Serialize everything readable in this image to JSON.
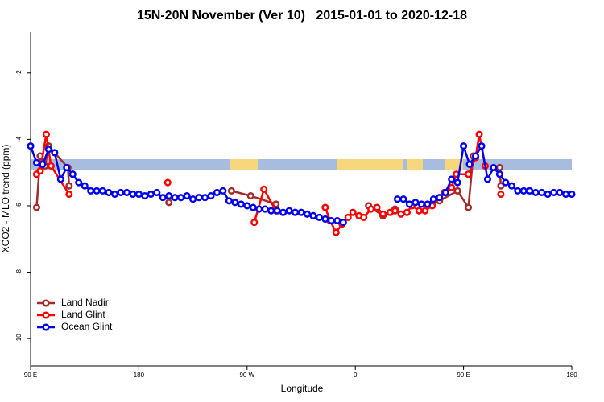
{
  "chart_data": {
    "type": "line",
    "title": "15N-20N November (Ver 10)   2015-01-01 to 2020-12-18",
    "x_label": "Longitude",
    "y_label": "XCO2 - MLO trend (ppm)",
    "xlim": [
      90,
      540
    ],
    "ylim": [
      -10.82,
      -0.77
    ],
    "xticks": [
      {
        "value": 90,
        "label": "90 E"
      },
      180,
      {
        "value": 270,
        "label": "90 W"
      },
      {
        "value": 360,
        "label": "0"
      },
      {
        "value": 450,
        "label": "90 E"
      },
      {
        "value": 540,
        "label": "180"
      }
    ],
    "yticks": [
      -2,
      -4,
      -6,
      -8,
      -10
    ],
    "legend": "bottom-left",
    "series": [
      {
        "name": "Land Nadir",
        "color": "#a52a2a",
        "x": [
          95,
          98,
          102,
          105,
          121,
          122,
          160,
          205,
          230,
          257,
          273,
          294,
          330,
          371,
          383,
          393,
          410,
          430,
          445,
          454,
          458,
          470,
          480,
          481
        ],
        "values": [
          -6.05,
          -4.5,
          -4.8,
          -4.2,
          -4.85,
          -5.4,
          null,
          -5.9,
          null,
          -5.55,
          -5.7,
          -5.95,
          null,
          -6.0,
          -6.3,
          -6.1,
          null,
          -5.85,
          -5.55,
          -6.05,
          -4.5,
          null,
          -4.85,
          -5.4
        ]
      },
      {
        "name": "Land Glint",
        "color": "#ff0000",
        "x": [
          95,
          98,
          103,
          107,
          122,
          160,
          204,
          240,
          276,
          284,
          294,
          310,
          335,
          339,
          344,
          349,
          354,
          358,
          363,
          367,
          373,
          378,
          383,
          389,
          393,
          398,
          403,
          407,
          413,
          418,
          424,
          434,
          440,
          444,
          454,
          460,
          463,
          468,
          475,
          481
        ],
        "values": [
          -5.05,
          -4.95,
          -3.85,
          -4.8,
          -5.65,
          null,
          -5.3,
          null,
          -6.5,
          -5.5,
          -6.15,
          null,
          -6.05,
          -6.45,
          -6.8,
          -6.55,
          -6.35,
          -6.2,
          -6.3,
          -6.35,
          -6.1,
          -6.05,
          -6.25,
          -6.2,
          -6.15,
          -6.25,
          -6.2,
          -6.0,
          -6.15,
          -6.15,
          -6.0,
          -5.6,
          -5.45,
          -5.05,
          -5.05,
          -4.55,
          -3.85,
          -4.8,
          null,
          -5.65
        ]
      },
      {
        "name": "Ocean Glint",
        "color": "#0000ee",
        "x": [
          90,
          95,
          100,
          105,
          110,
          115,
          120,
          125,
          130,
          135,
          140,
          145,
          150,
          155,
          160,
          165,
          170,
          175,
          180,
          185,
          190,
          195,
          200,
          205,
          210,
          215,
          220,
          225,
          230,
          235,
          240,
          245,
          250,
          255,
          260,
          265,
          270,
          275,
          280,
          285,
          290,
          295,
          300,
          305,
          310,
          315,
          320,
          325,
          330,
          335,
          340,
          345,
          350,
          370,
          395,
          400,
          405,
          410,
          415,
          420,
          425,
          430,
          435,
          440,
          445,
          450,
          455,
          460,
          465,
          470,
          475,
          480,
          485,
          490,
          495,
          500,
          505,
          510,
          515,
          520,
          525,
          530,
          535,
          540
        ],
        "values": [
          -4.2,
          -4.7,
          -4.75,
          -4.3,
          -4.4,
          -5.2,
          -4.85,
          -5.05,
          -5.3,
          -5.4,
          -5.55,
          -5.55,
          -5.55,
          -5.6,
          -5.65,
          -5.6,
          -5.6,
          -5.65,
          -5.65,
          -5.7,
          -5.65,
          -5.6,
          -5.75,
          -5.7,
          -5.75,
          -5.75,
          -5.7,
          -5.8,
          -5.75,
          -5.75,
          -5.7,
          -5.6,
          -5.55,
          -5.85,
          -5.9,
          -5.95,
          -6.0,
          -6.05,
          -6.1,
          -6.1,
          -6.15,
          -6.15,
          -6.2,
          -6.15,
          -6.2,
          -6.2,
          -6.25,
          -6.3,
          -6.35,
          -6.4,
          -6.45,
          -6.45,
          -6.5,
          null,
          -5.8,
          -5.8,
          -5.95,
          -5.9,
          -5.95,
          -5.95,
          -5.8,
          -5.75,
          -5.6,
          -5.2,
          -5.3,
          -4.2,
          -4.75,
          -4.5,
          -4.2,
          -5.2,
          -4.85,
          -5.05,
          -5.3,
          -5.4,
          -5.55,
          -5.55,
          -5.55,
          -5.6,
          -5.6,
          -5.65,
          -5.6,
          -5.6,
          -5.65,
          -5.65
        ]
      }
    ]
  }
}
